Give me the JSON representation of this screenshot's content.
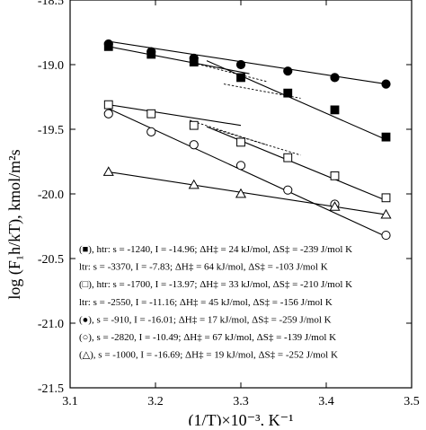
{
  "chart_data": {
    "type": "scatter",
    "title": "",
    "xlabel": "(1/T)×10⁻³, K⁻¹",
    "ylabel": "log (F₁h/kT), kmol/m²s",
    "xlim": [
      3.1,
      3.5
    ],
    "ylim": [
      -21.5,
      -18.5
    ],
    "x_ticks": [
      3.1,
      3.2,
      3.3,
      3.4,
      3.5
    ],
    "y_ticks": [
      -18.5,
      -19.0,
      -19.5,
      -20.0,
      -20.5,
      -21.0,
      -21.5
    ],
    "x_tick_labels": [
      "3.1",
      "3.2",
      "3.3",
      "3.4",
      "3.5"
    ],
    "y_tick_labels": [
      "-18.5",
      "-19.0",
      "-19.5",
      "-20.0",
      "-20.5",
      "-21.0",
      "-21.5"
    ],
    "grid": false,
    "legend_position": "bottom-left",
    "series": [
      {
        "marker": "filled-square",
        "x": [
          3.145,
          3.195,
          3.245,
          3.3,
          3.355,
          3.41,
          3.47
        ],
        "y": [
          -18.86,
          -18.92,
          -18.98,
          -19.1,
          -19.22,
          -19.35,
          -19.56
        ],
        "fit_lines": [
          {
            "style": "solid",
            "x": [
              3.145,
              3.31
            ],
            "y": [
              -18.86,
              -19.07
            ]
          },
          {
            "style": "solid",
            "x": [
              3.26,
              3.47
            ],
            "y": [
              -18.97,
              -19.58
            ]
          },
          {
            "style": "dashed",
            "x": [
              3.24,
              3.33
            ],
            "y": [
              -18.98,
              -19.13
            ]
          },
          {
            "style": "dashed",
            "x": [
              3.28,
              3.37
            ],
            "y": [
              -19.15,
              -19.26
            ]
          }
        ]
      },
      {
        "marker": "filled-circle",
        "x": [
          3.145,
          3.195,
          3.245,
          3.3,
          3.355,
          3.41,
          3.47
        ],
        "y": [
          -18.84,
          -18.9,
          -18.95,
          -19.0,
          -19.05,
          -19.1,
          -19.15
        ],
        "fit_lines": [
          {
            "style": "solid",
            "x": [
              3.145,
              3.47
            ],
            "y": [
              -18.82,
              -19.15
            ]
          }
        ]
      },
      {
        "marker": "open-square",
        "x": [
          3.145,
          3.195,
          3.245,
          3.3,
          3.355,
          3.41,
          3.47
        ],
        "y": [
          -19.31,
          -19.38,
          -19.47,
          -19.6,
          -19.72,
          -19.86,
          -20.03
        ],
        "fit_lines": [
          {
            "style": "solid",
            "x": [
              3.145,
              3.3
            ],
            "y": [
              -19.31,
              -19.47
            ]
          },
          {
            "style": "solid",
            "x": [
              3.26,
              3.47
            ],
            "y": [
              -19.48,
              -20.05
            ]
          },
          {
            "style": "dashed",
            "x": [
              3.24,
              3.33
            ],
            "y": [
              -19.43,
              -19.62
            ]
          },
          {
            "style": "dashed",
            "x": [
              3.27,
              3.37
            ],
            "y": [
              -19.5,
              -19.7
            ]
          }
        ]
      },
      {
        "marker": "open-circle",
        "x": [
          3.145,
          3.195,
          3.245,
          3.3,
          3.355,
          3.41,
          3.47
        ],
        "y": [
          -19.38,
          -19.52,
          -19.62,
          -19.78,
          -19.97,
          -20.08,
          -20.32
        ],
        "fit_lines": [
          {
            "style": "solid",
            "x": [
              3.145,
              3.47
            ],
            "y": [
              -19.34,
              -20.33
            ]
          }
        ]
      },
      {
        "marker": "open-triangle",
        "x": [
          3.145,
          3.245,
          3.3,
          3.41,
          3.47
        ],
        "y": [
          -19.83,
          -19.93,
          -20.0,
          -20.1,
          -20.16
        ],
        "fit_lines": [
          {
            "style": "solid",
            "x": [
              3.145,
              3.47
            ],
            "y": [
              -19.83,
              -20.16
            ]
          }
        ]
      }
    ],
    "legend": [
      {
        "marker": "filled-square",
        "text": "(■), htr: s = -1240, I = -14.96; ΔH‡ = 24 kJ/mol, ΔS‡ = -239 J/mol K"
      },
      {
        "marker": "none",
        "text": "ltr: s = -3370, I = -7.83; ΔH‡ = 64 kJ/mol, ΔS‡ = -103 J/mol K"
      },
      {
        "marker": "open-square",
        "text": "(□), htr: s = -1700, I = -13.97; ΔH‡ = 33 kJ/mol, ΔS‡ = -210 J/mol K"
      },
      {
        "marker": "none",
        "text": "ltr: s = -2550, I = -11.16; ΔH‡ = 45 kJ/mol, ΔS‡ = -156 J/mol K"
      },
      {
        "marker": "filled-circle",
        "text": "(●), s = -910, I = -16.01; ΔH‡ = 17 kJ/mol, ΔS‡ = -259 J/mol K"
      },
      {
        "marker": "open-circle",
        "text": "(○), s = -2820, I = -10.49; ΔH‡ = 67 kJ/mol, ΔS‡ = -139 J/mol K"
      },
      {
        "marker": "open-triangle",
        "text": "(△), s = -1000, I = -16.69; ΔH‡ = 19 kJ/mol, ΔS‡ = -252 J/mol K"
      }
    ]
  }
}
